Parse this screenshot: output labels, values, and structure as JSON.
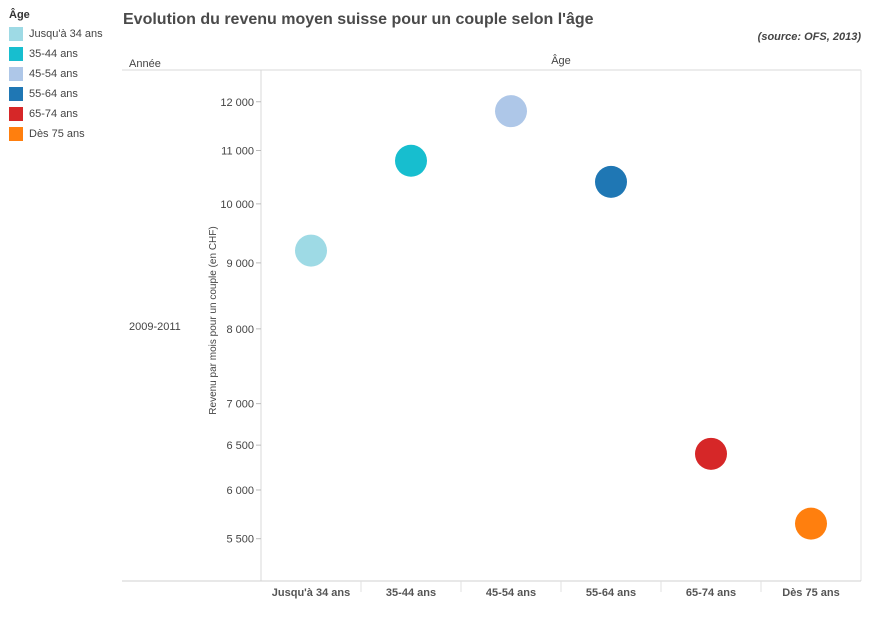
{
  "title": "Evolution du revenu moyen suisse pour un couple selon l'âge",
  "source": "(source: OFS, 2013)",
  "legend": {
    "title": "Âge",
    "items": [
      {
        "label": "Jusqu'à 34 ans",
        "color": "#9edae5"
      },
      {
        "label": "35-44 ans",
        "color": "#17becf"
      },
      {
        "label": "45-54 ans",
        "color": "#aec7e8"
      },
      {
        "label": "55-64 ans",
        "color": "#1f77b4"
      },
      {
        "label": "65-74 ans",
        "color": "#d62728"
      },
      {
        "label": "Dès 75 ans",
        "color": "#ff7f0e"
      }
    ]
  },
  "chart_data": {
    "type": "scatter",
    "title": "Evolution du revenu moyen suisse pour un couple selon l'âge",
    "xlabel": "Âge",
    "ylabel": "Revenu par mois pour un couple (en CHF)",
    "row_header": "Année",
    "row_label": "2009-2011",
    "y_scale": "log",
    "ylim": [
      5100,
      12700
    ],
    "y_ticks": [
      5500,
      6000,
      6500,
      7000,
      8000,
      9000,
      10000,
      11000,
      12000
    ],
    "y_tick_labels": [
      "5 500",
      "6 000",
      "6 500",
      "7 000",
      "8 000",
      "9 000",
      "10 000",
      "11 000",
      "12 000"
    ],
    "categories": [
      "Jusqu'à 34 ans",
      "35-44 ans",
      "45-54 ans",
      "55-64 ans",
      "65-74 ans",
      "Dès 75 ans"
    ],
    "values": [
      9200,
      10800,
      11800,
      10400,
      6400,
      5650
    ],
    "colors": [
      "#9edae5",
      "#17becf",
      "#aec7e8",
      "#1f77b4",
      "#d62728",
      "#ff7f0e"
    ],
    "grid": false,
    "legend_position": "left"
  }
}
